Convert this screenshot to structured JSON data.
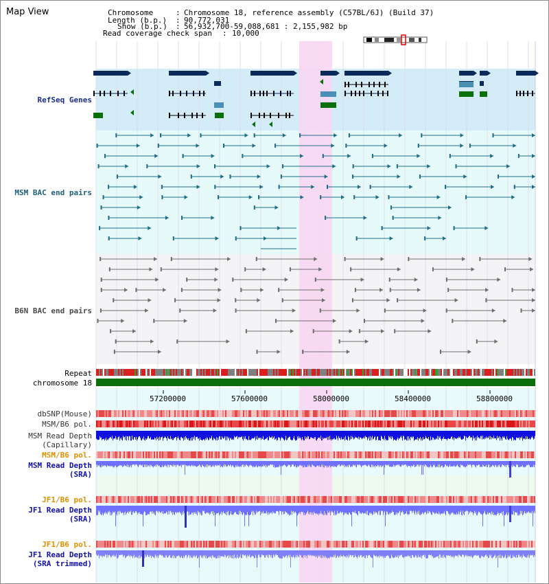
{
  "title": "Map View",
  "info": {
    "chromosome_label": "Chromosome",
    "chromosome_value": "Chromosome 18, reference assembly (C57BL/6J) (Build 37)",
    "length_label": "Length (b.p.)",
    "length_value": "90,772,031",
    "show_label": "Show (b.p.)",
    "show_value": "56,932,700-59,088,681 : 2,155,982 bp",
    "coverage_label": "Read coverage check span",
    "coverage_value": "10,000"
  },
  "tracks": {
    "refseq": "RefSeq Genes",
    "msm_bac": "MSM BAC end pairs",
    "b6n_bac": "B6N BAC end pairs",
    "repeat": "Repeat",
    "chromosome": "chromosome 18"
  },
  "axis": {
    "ticks": [
      "57200000",
      "57600000",
      "58000000",
      "58400000",
      "58800000"
    ]
  },
  "reads": {
    "dbsnp": "dbSNP(Mouse)",
    "msm_b6_pol": "MSM/B6 pol.",
    "msm_depth_cap_1": "MSM Read Depth",
    "msm_depth_cap_2": "(Capillary)",
    "msm_b6_pol_2": "MSM/B6 pol.",
    "msm_depth_sra_1": "MSM Read Depth",
    "msm_depth_sra_2": "(SRA)",
    "jf1_b6_pol": "JF1/B6 pol.",
    "jf1_depth_sra_1": "JF1 Read Depth",
    "jf1_depth_sra_2": "(SRA)",
    "jf1_b6_pol_2": "JF1/B6 pol.",
    "jf1_depth_trim_1": "JF1 Read Depth",
    "jf1_depth_trim_2": "(SRA trimmed)"
  },
  "colors": {
    "highlight": "#f8d6f2",
    "refseq_bg": "#d4ecf8",
    "bac_bg": "#e6fafa",
    "navy": "#0a2a5c",
    "teal": "#1f6c86",
    "gray_line": "#6e6e6e",
    "green": "#0a6e0a",
    "red": "#e23030",
    "depth_blue": "#1010e0",
    "depth_light": "#7070ff"
  }
}
